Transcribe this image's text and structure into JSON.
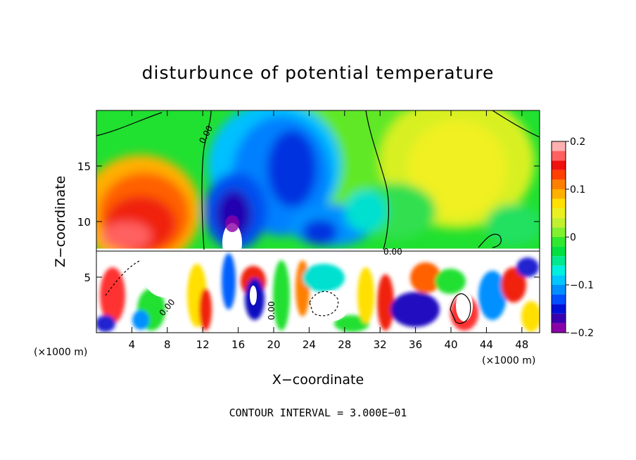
{
  "chart_data": {
    "type": "heatmap",
    "title": "disturbunce of potential temperature",
    "xlabel": "X−coordinate",
    "ylabel": "Z−coordinate",
    "x_unit_left": "(×1000 m)",
    "x_unit_right": "(×1000 m)",
    "xlim": [
      0,
      50
    ],
    "ylim": [
      0,
      20
    ],
    "x_ticks": [
      4,
      8,
      12,
      16,
      20,
      24,
      28,
      32,
      36,
      40,
      44,
      48
    ],
    "x_tick_labels": [
      "4",
      "8",
      "12",
      "16",
      "20",
      "24",
      "28",
      "32",
      "36",
      "40",
      "44",
      "48"
    ],
    "y_ticks": [
      5,
      10,
      15
    ],
    "y_tick_labels": [
      "5",
      "10",
      "15"
    ],
    "colorbar": {
      "range": [
        -0.2,
        0.2
      ],
      "ticks": [
        0.2,
        0.1,
        0,
        -0.1,
        -0.2
      ],
      "tick_labels": [
        "0.2",
        "0.1",
        "0",
        "−0.1",
        "−0.2"
      ],
      "colors": [
        "#8a00a8",
        "#3a00b0",
        "#0010d8",
        "#0050ff",
        "#0090ff",
        "#00c8ff",
        "#00f0e0",
        "#00e890",
        "#00e040",
        "#30e830",
        "#80f030",
        "#c0f030",
        "#e8f020",
        "#ffe000",
        "#ffb000",
        "#ff8000",
        "#ff4000",
        "#f01010",
        "#ff6060",
        "#ffb0b0"
      ]
    },
    "contour_labels": [
      "0.00",
      "0.00",
      "0.00",
      "0.00"
    ],
    "footer": "CONTOUR INTERVAL = 3.000E−01",
    "regions": [
      {
        "x": 6,
        "z": 11.5,
        "value": 0.14
      },
      {
        "x": 16,
        "z": 11,
        "value": -0.17
      },
      {
        "x": 22,
        "z": 14.5,
        "value": -0.14
      },
      {
        "x": 40,
        "z": 15,
        "value": 0.06
      },
      {
        "x": 4,
        "z": 17,
        "value": 0.02
      }
    ]
  }
}
